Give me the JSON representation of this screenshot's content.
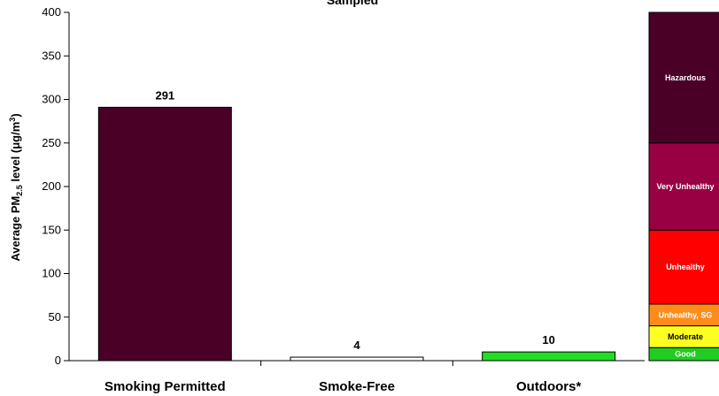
{
  "chart_data": {
    "type": "bar",
    "title": "Sampled",
    "ylabel": "Average PM2.5 level (μg/m3)",
    "ylabel_parts": {
      "prefix": "Average PM",
      "sub": "2.5",
      "mid": " level (μg/m",
      "sup": "3",
      "suffix": ")"
    },
    "ylim": [
      0,
      400
    ],
    "yticks": [
      0,
      50,
      100,
      150,
      200,
      250,
      300,
      350,
      400
    ],
    "grid": false,
    "categories": [
      "Smoking Permitted",
      "Smoke-Free",
      "Outdoors*"
    ],
    "values": [
      291,
      4,
      10
    ],
    "data_labels": [
      "291",
      "4",
      "10"
    ],
    "bar_colors": [
      "#4a0026",
      "#ffffff",
      "#22dd22"
    ],
    "air_quality_bands": [
      {
        "label": "Good",
        "from": 0,
        "to": 15,
        "color": "#22cc22",
        "text_color": "#ffffff"
      },
      {
        "label": "Moderate",
        "from": 15,
        "to": 40,
        "color": "#ffff22",
        "text_color": "#000000"
      },
      {
        "label": "Unhealthy, SG",
        "from": 40,
        "to": 65,
        "color": "#ff8c1a",
        "text_color": "#ffffff"
      },
      {
        "label": "Unhealthy",
        "from": 65,
        "to": 150,
        "color": "#ff0000",
        "text_color": "#ffffff"
      },
      {
        "label": "Very Unhealthy",
        "from": 150,
        "to": 250,
        "color": "#990044",
        "text_color": "#ffffff"
      },
      {
        "label": "Hazardous",
        "from": 250,
        "to": 400,
        "color": "#4a0026",
        "text_color": "#ffffff"
      }
    ]
  }
}
